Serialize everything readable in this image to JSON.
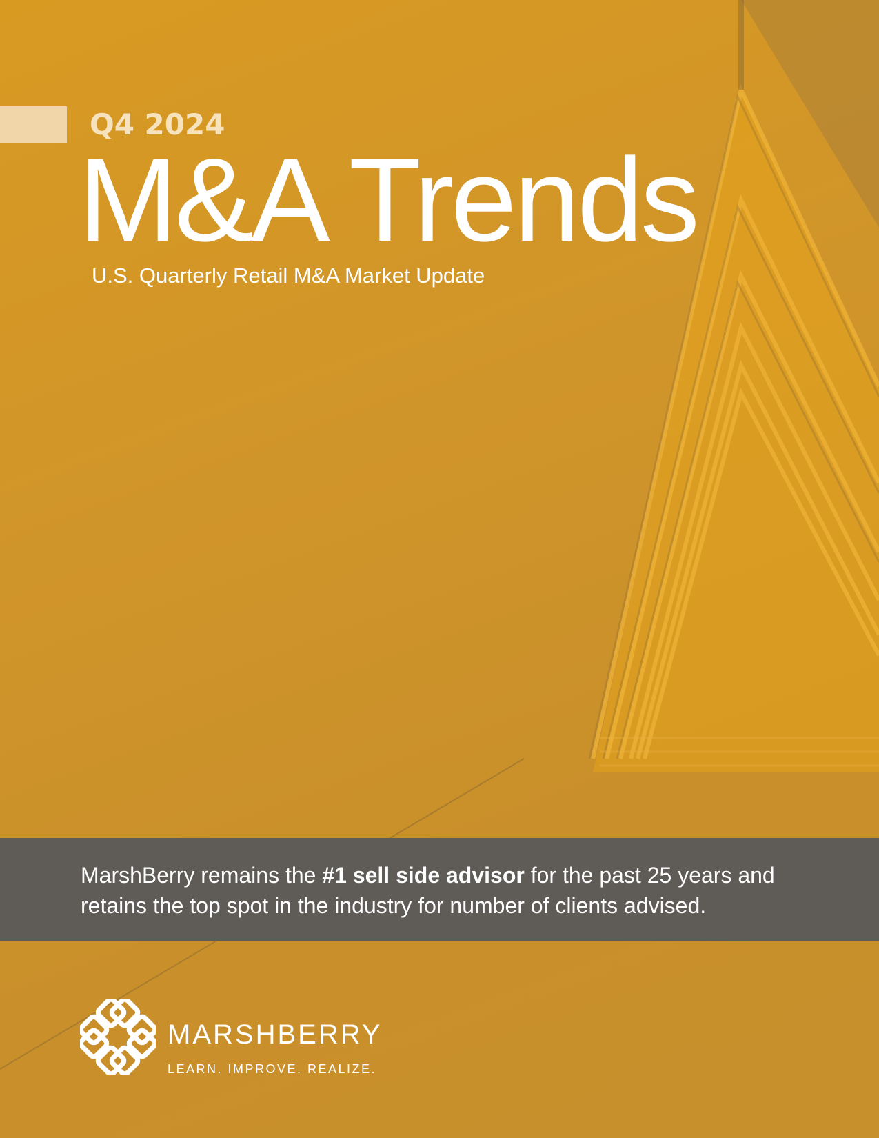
{
  "cover": {
    "quarter": "Q4 2024",
    "title": "M&A Trends",
    "subtitle": "U.S. Quarterly Retail M&A Market Update"
  },
  "band": {
    "text_before": "MarshBerry remains the ",
    "text_bold": "#1 sell side advisor",
    "text_after": " for the past 25 years and retains the top spot in the industry for number of clients advised."
  },
  "brand": {
    "name": "MARSHBERRY",
    "tagline": "LEARN. IMPROVE. REALIZE.",
    "logo_icon": "interlocked-squares-logo"
  },
  "colors": {
    "background": "#d4982a",
    "band": "#5f5b57",
    "accent": "#f0d6a8"
  }
}
